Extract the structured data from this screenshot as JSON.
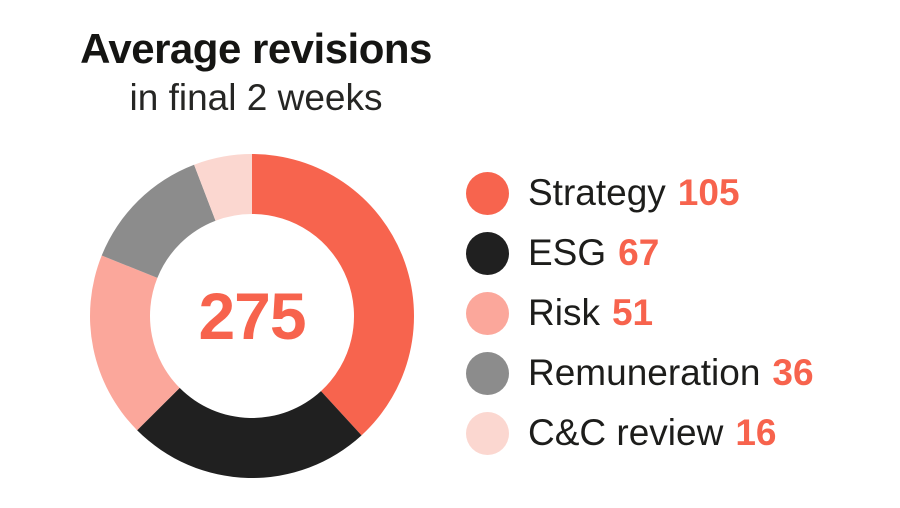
{
  "page": {
    "background_color": "#ffffff"
  },
  "header": {
    "title": "Average revisions",
    "subtitle": "in final 2 weeks"
  },
  "donut": {
    "center_label": "275"
  },
  "legend": {
    "items": [
      {
        "label": "Strategy",
        "value": "105",
        "color": "#F7644E"
      },
      {
        "label": "ESG",
        "value": "67",
        "color": "#202020"
      },
      {
        "label": "Risk",
        "value": "51",
        "color": "#FBA79B"
      },
      {
        "label": "Remuneration",
        "value": "36",
        "color": "#8C8C8C"
      },
      {
        "label": "C&C review",
        "value": "16",
        "color": "#FBD7D0"
      }
    ]
  },
  "chart_data": {
    "type": "pie",
    "variant": "donut",
    "title": "Average revisions",
    "subtitle": "in final 2 weeks",
    "categories": [
      "Strategy",
      "ESG",
      "Risk",
      "Remuneration",
      "C&C review"
    ],
    "values": [
      105,
      67,
      51,
      36,
      16
    ],
    "total": 275,
    "center_label": "275",
    "colors": [
      "#F7644E",
      "#202020",
      "#FBA79B",
      "#8C8C8C",
      "#FBD7D0"
    ],
    "start_angle_deg": 0,
    "direction": "clockwise",
    "inner_radius_ratio": 0.63,
    "legend_position": "right",
    "accent_color": "#F7634D",
    "text_color": "#1D1D1B",
    "grid": false
  }
}
